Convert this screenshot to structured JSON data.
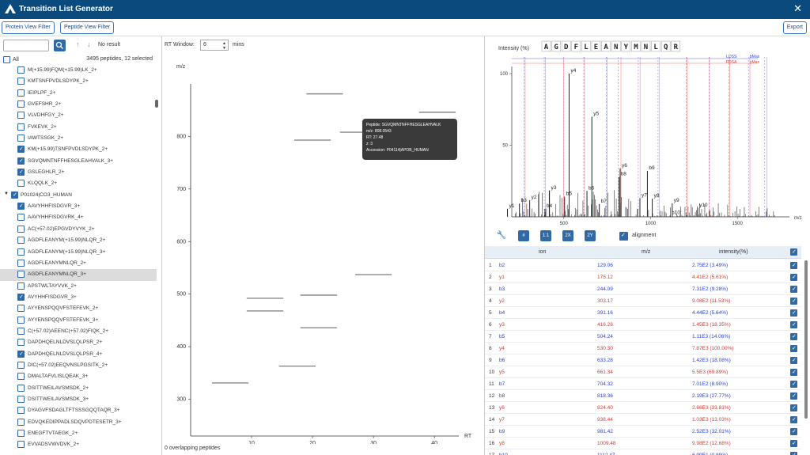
{
  "app": {
    "title": "Transition List Generator"
  },
  "toolbar": {
    "protein_filter": "Protein View Filter",
    "peptide_filter": "Peptide View Filter",
    "export": "Export"
  },
  "left": {
    "search_value": "",
    "no_result": "No result",
    "all_label": "All",
    "count": "3495 peptides, 12 selected",
    "rows": [
      {
        "label": "M(+15.99)FQM(+15.99)LK_2+",
        "checked": false,
        "selected": false,
        "protein": false
      },
      {
        "label": "KMTSNFPVDLSDYPK_2+",
        "checked": false,
        "selected": false,
        "protein": false
      },
      {
        "label": "IEIPLPF_2+",
        "checked": false,
        "selected": false,
        "protein": false
      },
      {
        "label": "GVEFSHR_2+",
        "checked": false,
        "selected": false,
        "protein": false
      },
      {
        "label": "VLVDHFGY_2+",
        "checked": false,
        "selected": false,
        "protein": false
      },
      {
        "label": "FVKEVK_2+",
        "checked": false,
        "selected": false,
        "protein": false
      },
      {
        "label": "IAWTSSGK_2+",
        "checked": false,
        "selected": false,
        "protein": false
      },
      {
        "label": "KM(+15.99)TSNFPVDLSDYPK_2+",
        "checked": true,
        "selected": false,
        "protein": false
      },
      {
        "label": "SGVQMNTNFFHESGLEAHVALK_3+",
        "checked": true,
        "selected": false,
        "protein": false
      },
      {
        "label": "GSLEGHLR_2+",
        "checked": true,
        "selected": false,
        "protein": false
      },
      {
        "label": "KLQQLK_2+",
        "checked": false,
        "selected": false,
        "protein": false
      },
      {
        "label": "P01024|CO3_HUMAN",
        "checked": true,
        "selected": false,
        "protein": true
      },
      {
        "label": "AAVYHHFISDGVR_3+",
        "checked": true,
        "selected": false,
        "protein": false
      },
      {
        "label": "AAVYHHFISDGVRK_4+",
        "checked": false,
        "selected": false,
        "protein": false
      },
      {
        "label": "AC(+57.02)EPGVDYVYK_2+",
        "checked": false,
        "selected": false,
        "protein": false
      },
      {
        "label": "AGDFLEANYM(+15.99)NLQR_2+",
        "checked": false,
        "selected": false,
        "protein": false
      },
      {
        "label": "AGDFLEANYM(+15.99)NLQR_3+",
        "checked": false,
        "selected": false,
        "protein": false
      },
      {
        "label": "AGDFLEANYMNLQR_2+",
        "checked": false,
        "selected": false,
        "protein": false
      },
      {
        "label": "AGDFLEANYMNLQR_3+",
        "checked": false,
        "selected": true,
        "protein": false
      },
      {
        "label": "APSTWLTAYVVK_2+",
        "checked": false,
        "selected": false,
        "protein": false
      },
      {
        "label": "AVYHHFISDGVR_3+",
        "checked": true,
        "selected": false,
        "protein": false
      },
      {
        "label": "AYYENSPQQVFSTEFEVK_2+",
        "checked": false,
        "selected": false,
        "protein": false
      },
      {
        "label": "AYYENSPQQVFSTEFEVK_3+",
        "checked": false,
        "selected": false,
        "protein": false
      },
      {
        "label": "C(+57.02)AEENC(+57.02)FIQK_2+",
        "checked": false,
        "selected": false,
        "protein": false
      },
      {
        "label": "DAPDHQELNLDVSLQLPSR_2+",
        "checked": false,
        "selected": false,
        "protein": false
      },
      {
        "label": "DAPDHQELNLDVSLQLPSR_4+",
        "checked": true,
        "selected": false,
        "protein": false
      },
      {
        "label": "DIC(+57.02)EEQVNSLPGSITK_2+",
        "checked": false,
        "selected": false,
        "protein": false
      },
      {
        "label": "DMALTAFVLISLQEAK_3+",
        "checked": false,
        "selected": false,
        "protein": false
      },
      {
        "label": "DSITTWEILAVSMSDK_2+",
        "checked": false,
        "selected": false,
        "protein": false
      },
      {
        "label": "DSITTWEILAVSMSDK_3+",
        "checked": false,
        "selected": false,
        "protein": false
      },
      {
        "label": "DYAGVFSDAGLTFTSSSGQQTAQR_3+",
        "checked": false,
        "selected": false,
        "protein": false
      },
      {
        "label": "EDVQKEDIPPADLSDQVPDTESETR_3+",
        "checked": false,
        "selected": false,
        "protein": false
      },
      {
        "label": "ENEGFTVTAEGK_2+",
        "checked": false,
        "selected": false,
        "protein": false
      },
      {
        "label": "EVVADSVWVDVK_2+",
        "checked": false,
        "selected": false,
        "protein": false
      }
    ]
  },
  "rt": {
    "label": "RT Window:",
    "value": "6",
    "unit": "mins",
    "overlap_text": "0 overlapping peptides",
    "tooltip": {
      "line1": "Peptide: SGVQMNTNFFHESGLEAHVALK",
      "line2": "m/z: 808.0543",
      "line3": "RT: 27.48",
      "line4": "z: 3",
      "line5": "Accession: P04114|APOB_HUMAN"
    }
  },
  "chart_data": [
    {
      "type": "scatter",
      "title": "",
      "xlabel": "RT",
      "ylabel": "m/z",
      "xlim": [
        0,
        44
      ],
      "ylim": [
        230,
        900
      ],
      "xticks": [
        10,
        20,
        30,
        40
      ],
      "yticks": [
        300,
        400,
        500,
        600,
        700,
        800
      ],
      "segments": [
        {
          "x0": 3.5,
          "x1": 9.5,
          "y": 331
        },
        {
          "x0": 9.2,
          "x1": 15.2,
          "y": 492
        },
        {
          "x0": 9.2,
          "x1": 15.2,
          "y": 468
        },
        {
          "x0": 14.5,
          "x1": 20.5,
          "y": 363
        },
        {
          "x0": 17,
          "x1": 23,
          "y": 793
        },
        {
          "x0": 18,
          "x1": 24,
          "y": 498
        },
        {
          "x0": 18,
          "x1": 24,
          "y": 436
        },
        {
          "x0": 19,
          "x1": 25,
          "y": 881
        },
        {
          "x0": 24.5,
          "x1": 30.5,
          "y": 808
        },
        {
          "x0": 27,
          "x1": 33,
          "y": 537
        },
        {
          "x0": 37.5,
          "x1": 43.5,
          "y": 846
        }
      ]
    },
    {
      "type": "bar",
      "title": "",
      "xlabel": "m/z",
      "ylabel": "Intensity (%)",
      "xlim": [
        200,
        1800
      ],
      "ylim": [
        0,
        105
      ],
      "xticks": [
        500,
        1000,
        1500
      ],
      "yticks": [
        50,
        100
      ],
      "sequence": [
        "A",
        "G",
        "D",
        "F",
        "L",
        "E",
        "A",
        "N",
        "Y",
        "M",
        "N",
        "L",
        "Q",
        "R"
      ],
      "legend": {
        "b_label": "LOSS",
        "y_label": "FDSA",
        "max_label_b": "bMax",
        "max_label_y": "yMax"
      },
      "annotated_peaks": [
        {
          "label": "y1",
          "mz": 175.12,
          "intensity": 5.61,
          "color": "#e0352f"
        },
        {
          "label": "b3",
          "mz": 244.09,
          "intensity": 9.28,
          "color": "#2a3fd8"
        },
        {
          "label": "y2",
          "mz": 303.17,
          "intensity": 11.53,
          "color": "#e0352f"
        },
        {
          "label": "b4",
          "mz": 391.16,
          "intensity": 5.64,
          "color": "#2a3fd8"
        },
        {
          "label": "y3",
          "mz": 416.28,
          "intensity": 18.35,
          "color": "#e0352f"
        },
        {
          "label": "b5",
          "mz": 504.24,
          "intensity": 14.06,
          "color": "#2a3fd8"
        },
        {
          "label": "y4",
          "mz": 530.3,
          "intensity": 100,
          "color": "#e0352f"
        },
        {
          "label": "b6",
          "mz": 633.28,
          "intensity": 18.08,
          "color": "#2a3fd8"
        },
        {
          "label": "y5",
          "mz": 661.34,
          "intensity": 69.89,
          "color": "#e0352f"
        },
        {
          "label": "b7",
          "mz": 704.32,
          "intensity": 8.9,
          "color": "#2a3fd8"
        },
        {
          "label": "b8",
          "mz": 818.36,
          "intensity": 27.77,
          "color": "#2a3fd8"
        },
        {
          "label": "y6",
          "mz": 824.4,
          "intensity": 33.81,
          "color": "#e0352f"
        },
        {
          "label": "y7",
          "mz": 938.44,
          "intensity": 13.03,
          "color": "#e0352f"
        },
        {
          "label": "b9",
          "mz": 981.42,
          "intensity": 32.01,
          "color": "#2a3fd8"
        },
        {
          "label": "y8",
          "mz": 1009.48,
          "intensity": 12.68,
          "color": "#e0352f"
        },
        {
          "label": "b10",
          "mz": 1112.47,
          "intensity": 0.89,
          "color": "#2a3fd8"
        },
        {
          "label": "y9",
          "mz": 1124.5,
          "intensity": 9.4,
          "color": "#e0352f"
        },
        {
          "label": "y10",
          "mz": 1271.56,
          "intensity": 6.2,
          "color": "#e0352f"
        }
      ],
      "fragment_lines_b": [
        272,
        387,
        500,
        615,
        744,
        814,
        929,
        1043,
        1206,
        1337,
        1451,
        1564,
        1658
      ],
      "fragment_lines_y": [
        268,
        385,
        490,
        610,
        740,
        820,
        930,
        1040,
        1200,
        1330,
        1448,
        1563,
        1660
      ]
    }
  ],
  "spectrum_tools": {
    "b1": "#",
    "b2": "1:1",
    "b3": "2X",
    "b4": "2Y",
    "alignment_label": "alignment"
  },
  "table": {
    "headers": {
      "ion": "ion",
      "mz": "m/z",
      "intensity": "intensity(%)"
    },
    "rows": [
      {
        "n": "1",
        "ion": "b2",
        "mz": "129.06",
        "intensity": "2.75E2 (3.49%)",
        "color": "blue"
      },
      {
        "n": "2",
        "ion": "y1",
        "mz": "175.12",
        "intensity": "4.41E2 (5.61%)",
        "color": "red"
      },
      {
        "n": "3",
        "ion": "b3",
        "mz": "244.09",
        "intensity": "7.31E2 (9.28%)",
        "color": "blue"
      },
      {
        "n": "4",
        "ion": "y2",
        "mz": "303.17",
        "intensity": "9.08E2 (11.53%)",
        "color": "red"
      },
      {
        "n": "5",
        "ion": "b4",
        "mz": "391.16",
        "intensity": "4.44E2 (5.64%)",
        "color": "blue"
      },
      {
        "n": "6",
        "ion": "y3",
        "mz": "416.28",
        "intensity": "1.45E3 (18.35%)",
        "color": "red"
      },
      {
        "n": "7",
        "ion": "b5",
        "mz": "504.24",
        "intensity": "1.11E3 (14.06%)",
        "color": "blue"
      },
      {
        "n": "8",
        "ion": "y4",
        "mz": "530.30",
        "intensity": "7.87E3 (100.00%)",
        "color": "red"
      },
      {
        "n": "9",
        "ion": "b6",
        "mz": "633.28",
        "intensity": "1.42E3 (18.08%)",
        "color": "blue"
      },
      {
        "n": "10",
        "ion": "y5",
        "mz": "661.34",
        "intensity": "5.5E3 (69.89%)",
        "color": "red"
      },
      {
        "n": "11",
        "ion": "b7",
        "mz": "704.32",
        "intensity": "7.01E2 (8.90%)",
        "color": "blue"
      },
      {
        "n": "12",
        "ion": "b8",
        "mz": "818.36",
        "intensity": "2.19E3 (27.77%)",
        "color": "blue"
      },
      {
        "n": "13",
        "ion": "y6",
        "mz": "824.40",
        "intensity": "2.66E3 (33.81%)",
        "color": "red"
      },
      {
        "n": "14",
        "ion": "y7",
        "mz": "938.44",
        "intensity": "1.03E3 (13.03%)",
        "color": "red"
      },
      {
        "n": "15",
        "ion": "b9",
        "mz": "981.42",
        "intensity": "2.52E3 (32.01%)",
        "color": "blue"
      },
      {
        "n": "16",
        "ion": "y8",
        "mz": "1009.48",
        "intensity": "9.98E2 (12.68%)",
        "color": "red"
      },
      {
        "n": "17",
        "ion": "b10",
        "mz": "1112.47",
        "intensity": "6.99E1 (0.89%)",
        "color": "blue"
      }
    ]
  },
  "colors": {
    "titlebar": "#0b4a7d",
    "accent": "#2f6aa6",
    "b_ion": "#2a3fd8",
    "y_ion": "#e0352f"
  }
}
